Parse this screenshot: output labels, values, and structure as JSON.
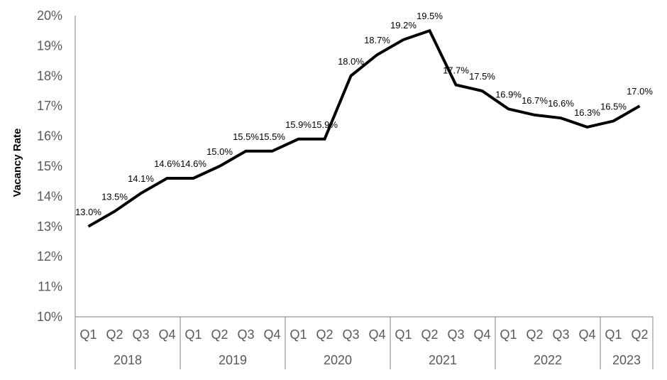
{
  "chart_data": {
    "type": "line",
    "ylabel": "Vacancy Rate",
    "xlabel": "",
    "ylim": [
      10,
      20
    ],
    "yticks": [
      "10%",
      "11%",
      "12%",
      "13%",
      "14%",
      "15%",
      "16%",
      "17%",
      "18%",
      "19%",
      "20%"
    ],
    "categories": [
      "Q1",
      "Q2",
      "Q3",
      "Q4",
      "Q1",
      "Q2",
      "Q3",
      "Q4",
      "Q1",
      "Q2",
      "Q3",
      "Q4",
      "Q1",
      "Q2",
      "Q3",
      "Q4",
      "Q1",
      "Q2",
      "Q3",
      "Q4",
      "Q1",
      "Q2"
    ],
    "years": [
      {
        "label": "2018",
        "count": 4
      },
      {
        "label": "2019",
        "count": 4
      },
      {
        "label": "2020",
        "count": 4
      },
      {
        "label": "2021",
        "count": 4
      },
      {
        "label": "2022",
        "count": 4
      },
      {
        "label": "2023",
        "count": 2
      }
    ],
    "series": [
      {
        "values": [
          13.0,
          13.5,
          14.1,
          14.6,
          14.6,
          15.0,
          15.5,
          15.5,
          15.9,
          15.9,
          18.0,
          18.7,
          19.2,
          19.5,
          17.7,
          17.5,
          16.9,
          16.7,
          16.6,
          16.3,
          16.5,
          17.0
        ],
        "labels": [
          "13.0%",
          "13.5%",
          "14.1%",
          "14.6%",
          "14.6%",
          "15.0%",
          "15.5%",
          "15.5%",
          "15.9%",
          "15.9%",
          "18.0%",
          "18.7%",
          "19.2%",
          "19.5%",
          "17.7%",
          "17.5%",
          "16.9%",
          "16.7%",
          "16.6%",
          "16.3%",
          "16.5%",
          "17.0%"
        ],
        "color": "#000000"
      }
    ],
    "grid": false,
    "legend": "none"
  }
}
